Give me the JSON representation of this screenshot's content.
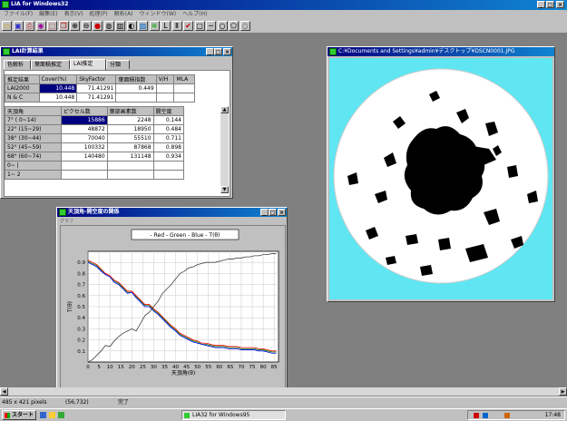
{
  "app": {
    "title": "LIA for Windows32"
  },
  "menu": [
    "ファイル(F)",
    "編集(E)",
    "表示(V)",
    "処理(P)",
    "解析(A)",
    "ウィンドウ(W)",
    "ヘルプ(H)"
  ],
  "toolbar": {
    "icons": [
      "open-icon",
      "save-icon",
      "print-icon",
      "palette-icon",
      "select-icon",
      "copy-icon",
      "zoom-in-icon",
      "zoom-out-icon",
      "color-icon",
      "filter-icon",
      "histogram-icon",
      "binarize-icon",
      "chart-icon",
      "stats-icon",
      "lai-icon",
      "lai2-icon",
      "check-icon",
      "rect-tool-icon",
      "line-tool-icon",
      "circle-tool-icon",
      "polygon-tool-icon",
      "fill-tool-icon"
    ]
  },
  "lai_window": {
    "title": "LAI計算結果",
    "tabs": [
      {
        "label": "色解析"
      },
      {
        "label": "葉面積推定"
      },
      {
        "label": "LAI推定"
      },
      {
        "label": "分類"
      }
    ],
    "result_table": {
      "headers": [
        "推定結果",
        "Cover(%)",
        "SkyFactor",
        "葉面積指数",
        "V/H",
        "MLA"
      ],
      "rows": [
        [
          "LAI2000",
          "10.448",
          "71.41291",
          "0.449",
          "",
          ""
        ],
        [
          "N & C",
          "10.448",
          "71.41291",
          "",
          "",
          ""
        ]
      ]
    },
    "angle_table": {
      "headers": [
        "天頂角",
        "ピクセル数",
        "葉部画素数",
        "開空度"
      ],
      "rows": [
        [
          "7° ( 0~14)",
          "15886",
          "2248",
          "0.144"
        ],
        [
          "22° (15~29)",
          "48872",
          "18950",
          "0.484"
        ],
        [
          "38° (30~44)",
          "70040",
          "55510",
          "0.711"
        ],
        [
          "52° (45~59)",
          "100332",
          "87868",
          "0.898"
        ],
        [
          "68° (60~74)",
          "140480",
          "131148",
          "0.934"
        ],
        [
          "0~ |",
          "",
          "",
          ""
        ],
        [
          "1~ 2",
          "",
          "",
          ""
        ]
      ]
    }
  },
  "image_window": {
    "title": "C:¥Documents and Settings¥admin¥デスクトップ¥DSCN0001.JPG"
  },
  "chart_window": {
    "title": "天頂角-開空度の関係",
    "toolbar_label": "グラフ",
    "chart_data": {
      "type": "line",
      "legend_text": "- Red - Green - Blue - T(θ)",
      "legend": [
        "Red",
        "Green",
        "Blue",
        "T(θ)"
      ],
      "xlabel": "天頂角(θ)",
      "ylabel": "T(θ)",
      "xlim": [
        0,
        87
      ],
      "ylim": [
        0,
        1
      ],
      "xticks": [
        0,
        5,
        10,
        15,
        20,
        25,
        30,
        35,
        40,
        45,
        50,
        55,
        60,
        65,
        70,
        75,
        80,
        85
      ],
      "yticks": [
        0.1,
        0.2,
        0.3,
        0.4,
        0.5,
        0.6,
        0.7,
        0.8,
        0.9
      ],
      "grid": true,
      "x": [
        0,
        2,
        4,
        6,
        8,
        10,
        12,
        14,
        16,
        18,
        20,
        22,
        24,
        26,
        28,
        30,
        32,
        34,
        36,
        38,
        40,
        42,
        44,
        46,
        48,
        50,
        52,
        54,
        56,
        58,
        60,
        62,
        64,
        66,
        68,
        70,
        72,
        74,
        76,
        78,
        80,
        82,
        84,
        86
      ],
      "series": [
        {
          "name": "Red",
          "color": "#ff0000",
          "values": [
            0.92,
            0.9,
            0.88,
            0.84,
            0.8,
            0.78,
            0.74,
            0.72,
            0.68,
            0.64,
            0.64,
            0.6,
            0.56,
            0.52,
            0.52,
            0.48,
            0.45,
            0.41,
            0.37,
            0.33,
            0.3,
            0.26,
            0.24,
            0.22,
            0.2,
            0.19,
            0.17,
            0.17,
            0.16,
            0.15,
            0.15,
            0.15,
            0.14,
            0.14,
            0.14,
            0.13,
            0.13,
            0.13,
            0.13,
            0.12,
            0.12,
            0.11,
            0.1,
            0.1
          ]
        },
        {
          "name": "Green",
          "color": "#008000",
          "values": [
            0.91,
            0.89,
            0.87,
            0.83,
            0.79,
            0.77,
            0.73,
            0.71,
            0.67,
            0.63,
            0.63,
            0.59,
            0.55,
            0.51,
            0.51,
            0.47,
            0.44,
            0.4,
            0.36,
            0.32,
            0.29,
            0.25,
            0.23,
            0.21,
            0.19,
            0.18,
            0.16,
            0.16,
            0.15,
            0.14,
            0.14,
            0.14,
            0.13,
            0.13,
            0.13,
            0.12,
            0.12,
            0.12,
            0.12,
            0.11,
            0.11,
            0.1,
            0.09,
            0.09
          ]
        },
        {
          "name": "Blue",
          "color": "#0000ff",
          "values": [
            0.9,
            0.88,
            0.86,
            0.82,
            0.79,
            0.77,
            0.72,
            0.7,
            0.66,
            0.62,
            0.63,
            0.58,
            0.54,
            0.5,
            0.5,
            0.46,
            0.43,
            0.39,
            0.35,
            0.31,
            0.28,
            0.24,
            0.22,
            0.2,
            0.18,
            0.17,
            0.16,
            0.15,
            0.14,
            0.13,
            0.13,
            0.13,
            0.12,
            0.12,
            0.12,
            0.11,
            0.11,
            0.11,
            0.11,
            0.1,
            0.1,
            0.09,
            0.08,
            0.08
          ]
        },
        {
          "name": "T(θ)",
          "color": "#404040",
          "values": [
            0.0,
            0.02,
            0.06,
            0.1,
            0.15,
            0.14,
            0.19,
            0.23,
            0.26,
            0.28,
            0.3,
            0.28,
            0.35,
            0.42,
            0.45,
            0.5,
            0.55,
            0.62,
            0.66,
            0.7,
            0.75,
            0.8,
            0.82,
            0.85,
            0.86,
            0.88,
            0.89,
            0.9,
            0.9,
            0.9,
            0.91,
            0.92,
            0.93,
            0.93,
            0.94,
            0.94,
            0.95,
            0.95,
            0.96,
            0.96,
            0.97,
            0.97,
            0.98,
            0.98
          ]
        }
      ]
    }
  },
  "status": {
    "size": "485 x 421 pixels",
    "coords": "(56,732)",
    "message": "完了"
  },
  "taskbar": {
    "start": "スタート",
    "task": "LIA32 for Windows95",
    "clock": "17:48"
  }
}
